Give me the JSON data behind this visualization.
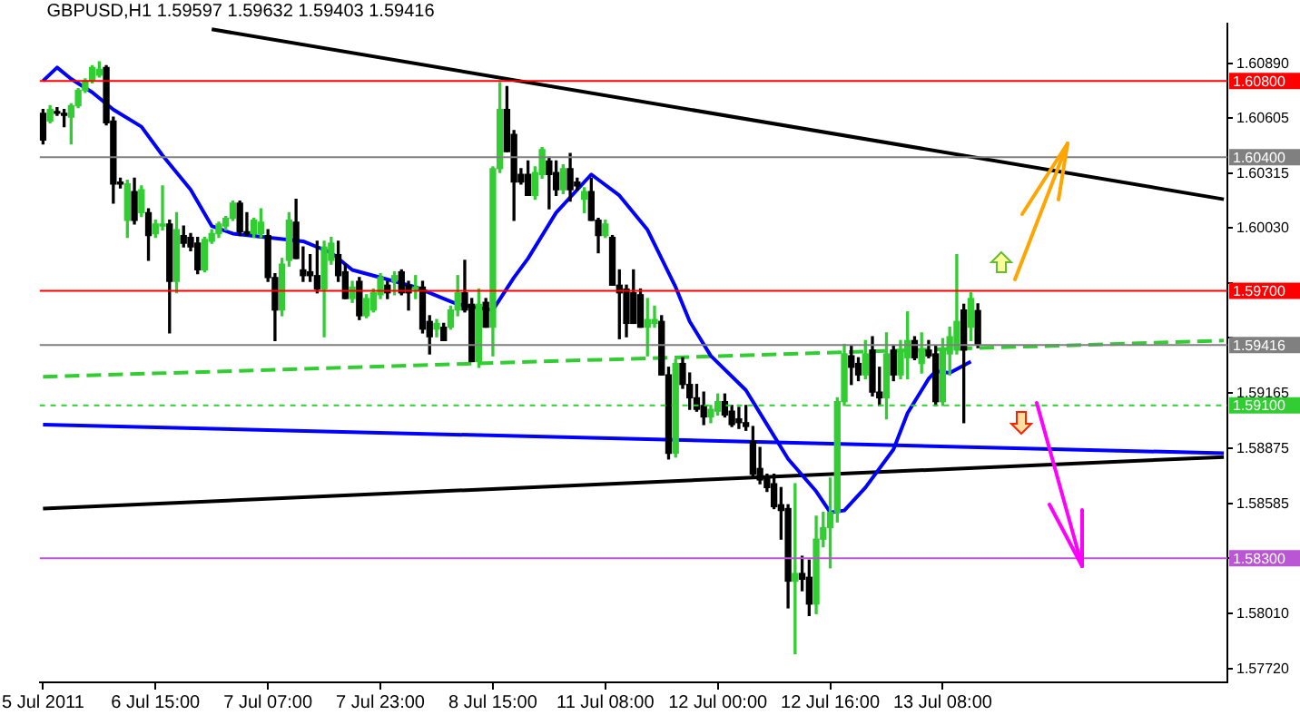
{
  "chart_data": {
    "type": "candlestick",
    "title": "GBPUSD,H1 1.59597 1.59632 1.59403 1.59416",
    "categories": [
      "5 Jul 2011",
      null,
      null,
      null,
      null,
      null,
      null,
      null,
      null,
      null,
      null,
      null,
      null,
      null,
      null,
      null,
      "6 Jul 15:00",
      null,
      null,
      null,
      null,
      null,
      null,
      null,
      null,
      null,
      null,
      null,
      null,
      null,
      null,
      null,
      "7 Jul 07:00",
      null,
      null,
      null,
      null,
      null,
      null,
      null,
      null,
      null,
      null,
      null,
      null,
      null,
      null,
      null,
      "7 Jul 23:00",
      null,
      null,
      null,
      null,
      null,
      null,
      null,
      null,
      null,
      null,
      null,
      null,
      null,
      null,
      null,
      "8 Jul 15:00",
      null,
      null,
      null,
      null,
      null,
      null,
      null,
      null,
      null,
      null,
      null,
      null,
      null,
      null,
      null,
      "11 Jul 08:00",
      null,
      null,
      null,
      null,
      null,
      null,
      null,
      null,
      null,
      null,
      null,
      null,
      null,
      null,
      null,
      "12 Jul 00:00",
      null,
      null,
      null,
      null,
      null,
      null,
      null,
      null,
      null,
      null,
      null,
      null,
      null,
      null,
      null,
      "12 Jul 16:00",
      null,
      null,
      null,
      null,
      null,
      null,
      null,
      null,
      null,
      null,
      null,
      null,
      null,
      null,
      null,
      "13 Jul 08:00",
      null,
      null,
      null,
      null,
      null,
      null,
      null,
      null,
      null,
      null,
      null,
      null,
      null,
      null,
      null,
      null,
      null,
      null,
      null,
      null,
      null,
      null,
      null,
      null,
      null,
      null,
      null,
      null,
      null,
      null,
      null,
      null,
      null,
      null,
      null,
      null,
      null,
      null,
      null,
      null
    ],
    "ohlc": [
      [
        1.6063,
        1.6065,
        1.6047,
        1.6049
      ],
      [
        1.6059,
        1.6067,
        1.6058,
        1.6065
      ],
      [
        1.6064,
        1.6066,
        1.6062,
        1.6063
      ],
      [
        1.6063,
        1.6065,
        1.6056,
        1.6062
      ],
      [
        1.6061,
        1.6068,
        1.6047,
        1.6067
      ],
      [
        1.6067,
        1.6076,
        1.6066,
        1.6075
      ],
      [
        1.6075,
        1.6081,
        1.6074,
        1.608
      ],
      [
        1.608,
        1.6088,
        1.6079,
        1.6087
      ],
      [
        1.6083,
        1.609,
        1.6082,
        1.6086
      ],
      [
        1.6087,
        1.6088,
        1.6057,
        1.6058
      ],
      [
        1.6059,
        1.6061,
        1.6016,
        1.6026
      ],
      [
        1.6027,
        1.6029,
        1.6024,
        1.6026
      ],
      [
        1.6007,
        1.6028,
        1.5998,
        1.6026
      ],
      [
        1.6022,
        1.6029,
        1.6005,
        1.6007
      ],
      [
        1.6011,
        1.6025,
        1.6009,
        1.6023
      ],
      [
        1.6011,
        1.6013,
        1.5986,
        1.5999
      ],
      [
        1.6,
        1.6007,
        1.5998,
        1.6005
      ],
      [
        1.6004,
        1.6025,
        1.6002,
        1.6005
      ],
      [
        1.6005,
        1.6007,
        1.5948,
        1.5975
      ],
      [
        1.5975,
        1.6011,
        1.5969,
        1.6002
      ],
      [
        1.5999,
        1.6004,
        1.5993,
        1.5995
      ],
      [
        1.5998,
        1.6,
        1.5991,
        1.5993
      ],
      [
        1.5995,
        1.5998,
        1.5979,
        1.5981
      ],
      [
        1.5981,
        1.5998,
        1.598,
        1.5997
      ],
      [
        1.5996,
        1.6002,
        1.5995,
        1.6
      ],
      [
        1.6,
        1.6006,
        1.5998,
        1.6005
      ],
      [
        1.6004,
        1.6009,
        1.6002,
        1.6008
      ],
      [
        1.6008,
        1.6017,
        1.6007,
        1.6016
      ],
      [
        1.6016,
        1.6017,
        1.5999,
        1.6001
      ],
      [
        1.6001,
        1.6011,
        1.5999,
        1.6
      ],
      [
        1.6,
        1.6008,
        1.5998,
        1.6007
      ],
      [
        1.6,
        1.6013,
        1.5998,
        1.6006
      ],
      [
        1.5999,
        1.6002,
        1.5975,
        1.5977
      ],
      [
        1.5977,
        1.5979,
        1.5944,
        1.596
      ],
      [
        1.596,
        1.5987,
        1.5957,
        1.5984
      ],
      [
        1.5986,
        1.6011,
        1.5983,
        1.6007
      ],
      [
        1.6006,
        1.6018,
        1.5987,
        1.5987
      ],
      [
        1.5981,
        1.5993,
        1.5975,
        1.5978
      ],
      [
        1.598,
        1.5989,
        1.5975,
        1.5978
      ],
      [
        1.5978,
        1.5996,
        1.5969,
        1.5971
      ],
      [
        1.5971,
        1.5996,
        1.5946,
        1.5993
      ],
      [
        1.5986,
        1.5998,
        1.5984,
        1.5995
      ],
      [
        1.5989,
        1.5996,
        1.5975,
        1.5978
      ],
      [
        1.598,
        1.5984,
        1.5966,
        1.5966
      ],
      [
        1.5966,
        1.5975,
        1.5964,
        1.5972
      ],
      [
        1.5975,
        1.5977,
        1.5955,
        1.5957
      ],
      [
        1.5957,
        1.5968,
        1.5956,
        1.5966
      ],
      [
        1.596,
        1.5971,
        1.5959,
        1.5969
      ],
      [
        1.5968,
        1.5979,
        1.5966,
        1.5977
      ],
      [
        1.5973,
        1.5975,
        1.5966,
        1.5969
      ],
      [
        1.5975,
        1.598,
        1.5968,
        1.5978
      ],
      [
        1.598,
        1.5981,
        1.5968,
        1.5969
      ],
      [
        1.5973,
        1.5975,
        1.596,
        1.5969
      ],
      [
        1.5971,
        1.5978,
        1.5966,
        1.5972
      ],
      [
        1.5972,
        1.5975,
        1.5948,
        1.595
      ],
      [
        1.5954,
        1.5957,
        1.5937,
        1.5946
      ],
      [
        1.595,
        1.5955,
        1.5946,
        1.5953
      ],
      [
        1.5951,
        1.5953,
        1.5944,
        1.5944
      ],
      [
        1.5951,
        1.5962,
        1.595,
        1.596
      ],
      [
        1.596,
        1.5978,
        1.5957,
        1.5969
      ],
      [
        1.5969,
        1.5986,
        1.5959,
        1.596
      ],
      [
        1.5963,
        1.5966,
        1.5933,
        1.5933
      ],
      [
        1.5933,
        1.5971,
        1.593,
        1.5963
      ],
      [
        1.5964,
        1.5966,
        1.5951,
        1.5951
      ],
      [
        1.5951,
        1.6035,
        1.5936,
        1.6034
      ],
      [
        1.6034,
        1.6079,
        1.6032,
        1.6065
      ],
      [
        1.6065,
        1.6077,
        1.6043,
        1.6043
      ],
      [
        1.6052,
        1.6054,
        1.6007,
        1.6027
      ],
      [
        1.6031,
        1.6034,
        1.6026,
        1.6027
      ],
      [
        1.6031,
        1.6038,
        1.602,
        1.602
      ],
      [
        1.602,
        1.6035,
        1.6018,
        1.6032
      ],
      [
        1.6031,
        1.6045,
        1.6029,
        1.6044
      ],
      [
        1.6038,
        1.604,
        1.6013,
        1.6031
      ],
      [
        1.6032,
        1.6038,
        1.602,
        1.6023
      ],
      [
        1.6023,
        1.6036,
        1.6021,
        1.6034
      ],
      [
        1.6034,
        1.6042,
        1.6017,
        1.6023
      ],
      [
        1.6027,
        1.6029,
        1.6023,
        1.6025
      ],
      [
        1.6018,
        1.6024,
        1.6011,
        1.6022
      ],
      [
        1.6022,
        1.6029,
        1.6007,
        1.6007
      ],
      [
        1.6007,
        1.6008,
        1.599,
        1.5999
      ],
      [
        1.5999,
        1.6007,
        1.5998,
        1.6005
      ],
      [
        1.5998,
        1.5999,
        1.5973,
        1.5973
      ],
      [
        1.5973,
        1.5981,
        1.5945,
        1.5969
      ],
      [
        1.5971,
        1.5973,
        1.5946,
        1.5953
      ],
      [
        1.5969,
        1.5981,
        1.5953,
        1.5953
      ],
      [
        1.5968,
        1.5971,
        1.5951,
        1.5951
      ],
      [
        1.5951,
        1.5966,
        1.5936,
        1.5955
      ],
      [
        1.5953,
        1.5962,
        1.5951,
        1.5955
      ],
      [
        1.5954,
        1.5957,
        1.5926,
        1.5926
      ],
      [
        1.5926,
        1.593,
        1.5882,
        1.5885
      ],
      [
        1.5885,
        1.5934,
        1.5883,
        1.5932
      ],
      [
        1.5932,
        1.5935,
        1.5919,
        1.5921
      ],
      [
        1.5921,
        1.5927,
        1.5908,
        1.5914
      ],
      [
        1.5914,
        1.5921,
        1.5907,
        1.5908
      ],
      [
        1.591,
        1.5917,
        1.59,
        1.5904
      ],
      [
        1.5904,
        1.591,
        1.5901,
        1.5908
      ],
      [
        1.5907,
        1.5916,
        1.5905,
        1.5912
      ],
      [
        1.5912,
        1.5916,
        1.5904,
        1.5905
      ],
      [
        1.5907,
        1.591,
        1.5899,
        1.59
      ],
      [
        1.5903,
        1.5909,
        1.5898,
        1.5901
      ],
      [
        1.5901,
        1.591,
        1.5897,
        1.5899
      ],
      [
        1.5891,
        1.5899,
        1.5872,
        1.5874
      ],
      [
        1.5877,
        1.5888,
        1.5869,
        1.5871
      ],
      [
        1.5872,
        1.5874,
        1.5865,
        1.5867
      ],
      [
        1.5869,
        1.5874,
        1.5856,
        1.5857
      ],
      [
        1.5858,
        1.5867,
        1.584,
        1.5855
      ],
      [
        1.5856,
        1.5858,
        1.5804,
        1.5818
      ],
      [
        1.5818,
        1.5869,
        1.578,
        1.5822
      ],
      [
        1.5822,
        1.5831,
        1.5813,
        1.5819
      ],
      [
        1.582,
        1.5829,
        1.58,
        1.5806
      ],
      [
        1.5806,
        1.5852,
        1.5801,
        1.584
      ],
      [
        1.584,
        1.5854,
        1.5836,
        1.5846
      ],
      [
        1.5846,
        1.5872,
        1.5825,
        1.5854
      ],
      [
        1.5854,
        1.5914,
        1.5849,
        1.5912
      ],
      [
        1.5912,
        1.5942,
        1.591,
        1.5937
      ],
      [
        1.5936,
        1.5941,
        1.5921,
        1.593
      ],
      [
        1.5932,
        1.5935,
        1.5923,
        1.5926
      ],
      [
        1.5926,
        1.5944,
        1.5924,
        1.5937
      ],
      [
        1.5939,
        1.5946,
        1.5915,
        1.5917
      ],
      [
        1.5917,
        1.593,
        1.591,
        1.5914
      ],
      [
        1.5914,
        1.5948,
        1.5903,
        1.5937
      ],
      [
        1.5939,
        1.5941,
        1.5923,
        1.5926
      ],
      [
        1.5926,
        1.5944,
        1.5924,
        1.5939
      ],
      [
        1.5935,
        1.5959,
        1.5924,
        1.5944
      ],
      [
        1.5944,
        1.5946,
        1.5934,
        1.5935
      ],
      [
        1.5932,
        1.5948,
        1.5927,
        1.5939
      ],
      [
        1.5939,
        1.5944,
        1.5935,
        1.5936
      ],
      [
        1.5937,
        1.5941,
        1.591,
        1.5912
      ],
      [
        1.5912,
        1.5945,
        1.591,
        1.5939
      ],
      [
        1.5937,
        1.5951,
        1.5926,
        1.5946
      ],
      [
        1.5939,
        1.5989,
        1.5937,
        1.5954
      ],
      [
        1.596,
        1.5963,
        1.5901,
        1.5939
      ],
      [
        1.5951,
        1.5969,
        1.5944,
        1.5966
      ],
      [
        1.59597,
        1.59632,
        1.59403,
        1.59416
      ],
      null,
      null,
      null,
      null,
      null,
      null,
      null,
      null,
      null,
      null,
      null,
      null,
      null,
      null,
      null,
      null,
      null,
      null,
      null,
      null,
      null,
      null,
      null,
      null,
      null,
      null,
      null,
      null,
      null,
      null,
      null,
      null,
      null,
      null,
      null
    ],
    "colors": [
      "#000000",
      "#32cd32",
      "#000000",
      "#000000",
      "#32cd32",
      "#32cd32",
      "#32cd32",
      "#32cd32",
      "#32cd32",
      "#000000",
      "#000000",
      "#000000",
      "#32cd32",
      "#000000",
      "#32cd32",
      "#000000",
      "#32cd32",
      "#32cd32",
      "#000000",
      "#32cd32",
      "#000000",
      "#000000",
      "#000000",
      "#32cd32",
      "#32cd32",
      "#32cd32",
      "#32cd32",
      "#32cd32",
      "#000000",
      "#000000",
      "#32cd32",
      "#32cd32",
      "#000000",
      "#000000",
      "#32cd32",
      "#32cd32",
      "#000000",
      "#000000",
      "#000000",
      "#000000",
      "#32cd32",
      "#32cd32",
      "#000000",
      "#000000",
      "#32cd32",
      "#000000",
      "#32cd32",
      "#32cd32",
      "#32cd32",
      "#000000",
      "#32cd32",
      "#000000",
      "#000000",
      "#32cd32",
      "#000000",
      "#000000",
      "#32cd32",
      "#000000",
      "#32cd32",
      "#32cd32",
      "#000000",
      "#000000",
      "#32cd32",
      "#000000",
      "#32cd32",
      "#32cd32",
      "#000000",
      "#000000",
      "#000000",
      "#000000",
      "#32cd32",
      "#32cd32",
      "#000000",
      "#000000",
      "#32cd32",
      "#000000",
      "#000000",
      "#32cd32",
      "#000000",
      "#000000",
      "#32cd32",
      "#000000",
      "#000000",
      "#000000",
      "#000000",
      "#000000",
      "#32cd32",
      "#32cd32",
      "#000000",
      "#000000",
      "#32cd32",
      "#000000",
      "#000000",
      "#000000",
      "#000000",
      "#32cd32",
      "#32cd32",
      "#000000",
      "#000000",
      "#000000",
      "#000000",
      "#000000",
      "#000000",
      "#000000",
      "#000000",
      "#000000",
      "#000000",
      "#32cd32",
      "#000000",
      "#000000",
      "#32cd32",
      "#32cd32",
      "#32cd32",
      "#32cd32",
      "#32cd32",
      "#000000",
      "#000000",
      "#32cd32",
      "#000000",
      "#000000",
      "#32cd32",
      "#000000",
      "#32cd32",
      "#32cd32",
      "#000000",
      "#32cd32",
      "#000000",
      "#000000",
      "#32cd32",
      "#32cd32",
      "#32cd32",
      "#000000",
      "#32cd32",
      "#000000",
      null,
      null,
      null,
      null,
      null,
      null,
      null,
      null,
      null,
      null,
      null,
      null,
      null,
      null,
      null,
      null,
      null,
      null,
      null,
      null,
      null,
      null,
      null,
      null,
      null,
      null,
      null,
      null,
      null,
      null,
      null,
      null,
      null,
      null,
      null
    ],
    "series": [
      {
        "type": "line",
        "color": "#0000ff",
        "values": [
          1.608,
          null,
          1.6087,
          null,
          1.6081,
          null,
          null,
          1.6074,
          null,
          null,
          1.6065,
          null,
          null,
          null,
          1.6056,
          null,
          null,
          1.6041,
          null,
          null,
          null,
          1.6023,
          null,
          null,
          1.6004,
          null,
          null,
          1.6,
          null,
          null,
          null,
          null,
          1.5998,
          null,
          null,
          null,
          null,
          1.5996,
          null,
          null,
          null,
          1.599,
          null,
          null,
          1.5981,
          null,
          null,
          1.5978,
          null,
          null,
          null,
          null,
          null,
          1.5972,
          null,
          null,
          null,
          1.5966,
          null,
          1.5963,
          null,
          null,
          null,
          null,
          1.596,
          null,
          null,
          1.5977,
          null,
          1.5987,
          null,
          null,
          null,
          1.6011,
          null,
          null,
          null,
          null,
          1.6031,
          null,
          null,
          null,
          1.602,
          null,
          null,
          null,
          1.6002,
          null,
          1.5987,
          null,
          1.5972,
          null,
          1.5954,
          null,
          null,
          1.5936,
          null,
          null,
          null,
          null,
          1.5918,
          null,
          null,
          1.59,
          null,
          null,
          1.5882,
          null,
          null,
          null,
          1.5865,
          null,
          1.5854,
          null,
          1.5855,
          null,
          null,
          1.5867,
          null,
          null,
          null,
          1.5887,
          null,
          1.5906,
          null,
          null,
          1.5924,
          1.5928,
          null,
          1.5927,
          null,
          null,
          1.5933,
          null,
          null,
          null,
          null,
          null,
          null,
          null,
          null,
          null,
          null,
          null,
          null,
          null,
          null,
          null,
          null,
          null,
          null,
          null,
          null,
          null,
          null,
          null,
          null,
          null,
          null,
          null,
          null,
          null,
          null,
          null,
          null,
          null,
          null,
          null,
          null
        ]
      },
      {
        "type": "line",
        "color": "#000000",
        "values": [
          null,
          null,
          null,
          null,
          null,
          null,
          null,
          null,
          null,
          null,
          null,
          null,
          null,
          null,
          null,
          null,
          null,
          null,
          null,
          null,
          null,
          null,
          null,
          null,
          1.6107,
          null,
          null,
          null,
          null,
          null,
          null,
          null,
          null,
          null,
          null,
          null,
          null,
          null,
          null,
          null,
          null,
          null,
          null,
          null,
          null,
          null,
          null,
          null,
          null,
          null,
          null,
          null,
          null,
          null,
          null,
          null,
          null,
          null,
          null,
          null,
          null,
          null,
          null,
          null,
          null,
          null,
          null,
          null,
          null,
          null,
          null,
          null,
          null,
          null,
          null,
          null,
          null,
          null,
          null,
          null,
          null,
          null,
          null,
          null,
          null,
          null,
          null,
          null,
          null,
          null,
          null,
          null,
          null,
          null,
          null,
          null,
          null,
          null,
          null,
          null,
          null,
          null,
          null,
          null,
          null,
          null,
          null,
          null,
          null,
          null,
          null,
          null,
          null,
          null,
          null,
          null,
          null,
          null,
          null,
          null,
          null,
          null,
          null,
          null,
          null,
          null,
          null,
          null,
          null,
          null,
          null,
          null,
          null,
          null,
          null,
          null,
          null,
          null,
          null,
          null,
          null,
          null,
          null,
          null,
          null,
          null,
          null,
          null,
          null,
          null,
          null,
          null,
          null,
          null,
          null,
          null,
          null,
          null,
          null,
          null,
          null,
          null,
          null,
          null,
          null,
          null,
          null,
          null,
          1.6018
        ]
      },
      {
        "type": "line",
        "color": "#0000ff",
        "values": [
          1.59,
          null,
          null,
          null,
          null,
          null,
          null,
          null,
          null,
          null,
          null,
          null,
          null,
          null,
          null,
          null,
          null,
          null,
          null,
          null,
          null,
          null,
          null,
          null,
          null,
          null,
          null,
          null,
          null,
          null,
          null,
          null,
          null,
          null,
          null,
          null,
          null,
          null,
          null,
          null,
          null,
          null,
          null,
          null,
          null,
          null,
          null,
          null,
          null,
          null,
          null,
          null,
          null,
          null,
          null,
          null,
          null,
          null,
          null,
          null,
          null,
          null,
          null,
          null,
          null,
          null,
          null,
          null,
          null,
          null,
          null,
          null,
          null,
          null,
          null,
          null,
          null,
          null,
          null,
          null,
          null,
          null,
          null,
          null,
          null,
          null,
          null,
          null,
          null,
          null,
          null,
          null,
          null,
          null,
          null,
          null,
          null,
          null,
          null,
          null,
          null,
          null,
          null,
          null,
          null,
          null,
          null,
          null,
          null,
          null,
          null,
          null,
          null,
          null,
          null,
          null,
          null,
          null,
          null,
          null,
          null,
          null,
          null,
          null,
          null,
          null,
          null,
          null,
          null,
          null,
          null,
          null,
          null,
          null,
          null,
          null,
          null,
          null,
          null,
          null,
          null,
          null,
          null,
          null,
          null,
          null,
          null,
          null,
          null,
          null,
          null,
          null,
          null,
          null,
          null,
          null,
          null,
          null,
          null,
          null,
          null,
          null,
          null,
          null,
          null,
          null,
          null,
          null,
          1.5885
        ]
      },
      {
        "type": "line",
        "color": "#000000",
        "values": [
          1.5856,
          null,
          null,
          null,
          null,
          null,
          null,
          null,
          null,
          null,
          null,
          null,
          null,
          null,
          null,
          null,
          null,
          null,
          null,
          null,
          null,
          null,
          null,
          null,
          null,
          null,
          null,
          null,
          null,
          null,
          null,
          null,
          null,
          null,
          null,
          null,
          null,
          null,
          null,
          null,
          null,
          null,
          null,
          null,
          null,
          null,
          null,
          null,
          null,
          null,
          null,
          null,
          null,
          null,
          null,
          null,
          null,
          null,
          null,
          null,
          null,
          null,
          null,
          null,
          null,
          null,
          null,
          null,
          null,
          null,
          null,
          null,
          null,
          null,
          null,
          null,
          null,
          null,
          null,
          null,
          null,
          null,
          null,
          null,
          null,
          null,
          null,
          null,
          null,
          null,
          null,
          null,
          null,
          null,
          null,
          null,
          null,
          null,
          null,
          null,
          null,
          null,
          null,
          null,
          null,
          null,
          null,
          null,
          null,
          null,
          null,
          null,
          null,
          null,
          null,
          null,
          null,
          null,
          null,
          null,
          null,
          null,
          null,
          null,
          null,
          null,
          null,
          null,
          null,
          null,
          null,
          null,
          null,
          null,
          null,
          null,
          null,
          null,
          null,
          null,
          null,
          null,
          null,
          null,
          null,
          null,
          null,
          null,
          null,
          null,
          null,
          null,
          null,
          null,
          null,
          null,
          null,
          null,
          null,
          null,
          null,
          null,
          null,
          null,
          null,
          null,
          null,
          null,
          1.5883
        ]
      },
      {
        "type": "line",
        "color": "#32cd32",
        "line_style": "dashed",
        "values": [
          1.5925,
          null,
          null,
          null,
          null,
          null,
          null,
          null,
          null,
          null,
          null,
          null,
          null,
          null,
          null,
          null,
          null,
          null,
          null,
          null,
          null,
          null,
          null,
          null,
          null,
          null,
          null,
          null,
          null,
          null,
          null,
          null,
          null,
          null,
          null,
          null,
          null,
          null,
          null,
          null,
          null,
          null,
          null,
          null,
          null,
          null,
          null,
          null,
          null,
          null,
          null,
          null,
          null,
          null,
          null,
          null,
          null,
          null,
          null,
          null,
          null,
          null,
          null,
          null,
          null,
          null,
          null,
          null,
          null,
          null,
          null,
          null,
          null,
          null,
          null,
          null,
          null,
          null,
          null,
          null,
          null,
          null,
          null,
          null,
          null,
          null,
          null,
          null,
          null,
          null,
          null,
          null,
          null,
          null,
          null,
          null,
          null,
          null,
          null,
          null,
          null,
          null,
          null,
          null,
          null,
          null,
          null,
          null,
          null,
          null,
          null,
          null,
          null,
          null,
          null,
          null,
          null,
          null,
          null,
          null,
          null,
          null,
          null,
          null,
          null,
          null,
          null,
          null,
          null,
          null,
          null,
          null,
          null,
          null,
          null,
          null,
          null,
          null,
          null,
          null,
          null,
          null,
          null,
          null,
          null,
          null,
          null,
          null,
          null,
          null,
          null,
          null,
          null,
          null,
          null,
          null,
          null,
          null,
          null,
          null,
          null,
          null,
          null,
          null,
          null,
          null,
          null,
          null,
          1.5944
        ]
      }
    ],
    "ylim": [
      1.5765,
      1.611
    ],
    "yticks": [
      {
        "value": 1.6089,
        "label": "1.60890"
      },
      {
        "value": 1.60605,
        "label": "1.60605"
      },
      {
        "value": 1.60315,
        "label": "1.60315"
      },
      {
        "value": 1.6003,
        "label": "1.60030"
      },
      {
        "value": 1.5974,
        "label": null
      },
      {
        "value": 1.59455,
        "label": null
      },
      {
        "value": 1.59165,
        "label": "1.59165"
      },
      {
        "value": 1.58875,
        "label": "1.58875"
      },
      {
        "value": 1.58585,
        "label": "1.58585"
      },
      {
        "value": 1.583,
        "label": null
      },
      {
        "value": 1.5801,
        "label": "1.58010"
      },
      {
        "value": 1.5772,
        "label": "1.57720"
      }
    ],
    "ref_lines": [
      {
        "axis": "y",
        "value": 1.608,
        "label": "1.60800",
        "color": "#ff0000"
      },
      {
        "axis": "y",
        "value": 1.604,
        "label": "1.60400",
        "color": "#808080"
      },
      {
        "axis": "y",
        "value": 1.597,
        "label": "1.59700",
        "color": "#ff0000"
      },
      {
        "axis": "y",
        "value": 1.59416,
        "label": "1.59416",
        "color": "#808080"
      },
      {
        "axis": "y",
        "value": 1.591,
        "label": "1.59100",
        "color": "#32cd32",
        "line_style": "dotted"
      },
      {
        "axis": "y",
        "value": 1.583,
        "label": "1.58300",
        "color": "#ba55d3"
      }
    ]
  }
}
